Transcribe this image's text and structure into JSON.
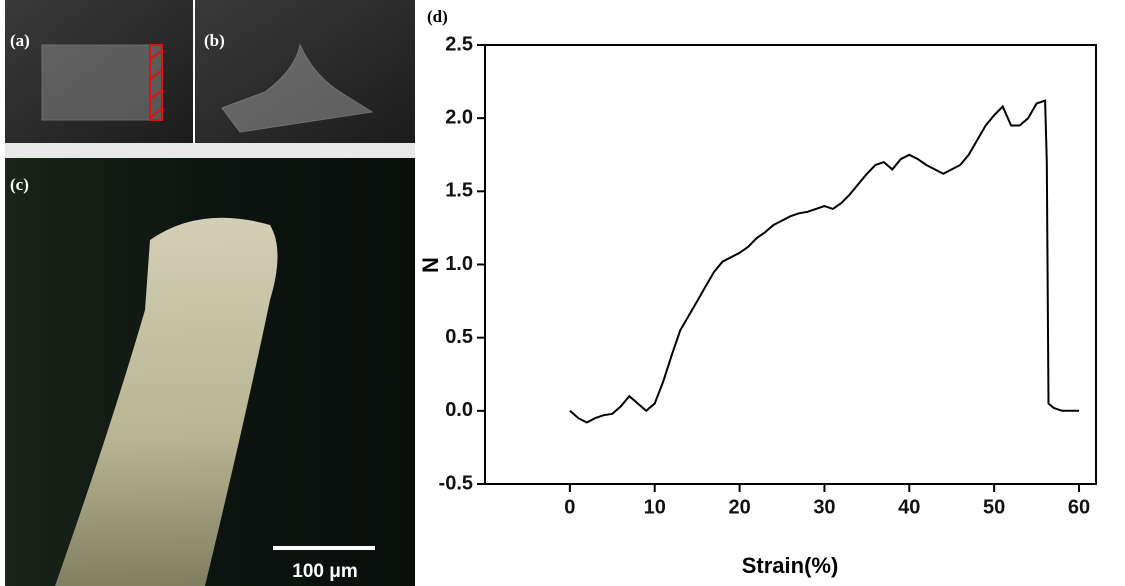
{
  "panels": {
    "a": "(a)",
    "b": "(b)",
    "c": "(c)",
    "d": "(d)",
    "scale_bar": "100 μm"
  },
  "chart_data": {
    "type": "line",
    "xlabel": "Strain(%)",
    "ylabel": "N",
    "x": [
      0,
      1,
      2,
      3,
      4,
      5,
      6,
      7,
      8,
      9,
      10,
      11,
      12,
      13,
      14,
      15,
      16,
      17,
      18,
      19,
      20,
      21,
      22,
      23,
      24,
      25,
      26,
      27,
      28,
      29,
      30,
      31,
      32,
      33,
      34,
      35,
      36,
      37,
      38,
      39,
      40,
      41,
      42,
      43,
      44,
      45,
      46,
      47,
      48,
      49,
      50,
      51,
      52,
      53,
      54,
      55,
      56,
      56.2,
      56.4,
      57,
      58,
      59,
      60
    ],
    "series": [
      {
        "color": "#000000",
        "values": [
          0.0,
          -0.05,
          -0.08,
          -0.05,
          -0.03,
          -0.02,
          0.03,
          0.1,
          0.05,
          0.0,
          0.05,
          0.2,
          0.38,
          0.55,
          0.65,
          0.75,
          0.85,
          0.95,
          1.02,
          1.05,
          1.08,
          1.12,
          1.18,
          1.22,
          1.27,
          1.3,
          1.33,
          1.35,
          1.36,
          1.38,
          1.4,
          1.38,
          1.42,
          1.48,
          1.55,
          1.62,
          1.68,
          1.7,
          1.65,
          1.72,
          1.75,
          1.72,
          1.68,
          1.65,
          1.62,
          1.65,
          1.68,
          1.75,
          1.85,
          1.95,
          2.02,
          2.08,
          1.95,
          1.95,
          2.0,
          2.1,
          2.12,
          1.7,
          0.05,
          0.02,
          0.0,
          0.0,
          0.0
        ]
      }
    ],
    "xlim": [
      -10,
      62
    ],
    "ylim": [
      -0.5,
      2.5
    ],
    "xticks": [
      0,
      10,
      20,
      30,
      40,
      50,
      60
    ],
    "yticks": [
      -0.5,
      {
        "value": 0,
        "label": "0.0"
      },
      0.5,
      {
        "value": 1,
        "label": "1.0"
      },
      1.5,
      {
        "value": 2,
        "label": "2.0"
      },
      2.5
    ]
  }
}
